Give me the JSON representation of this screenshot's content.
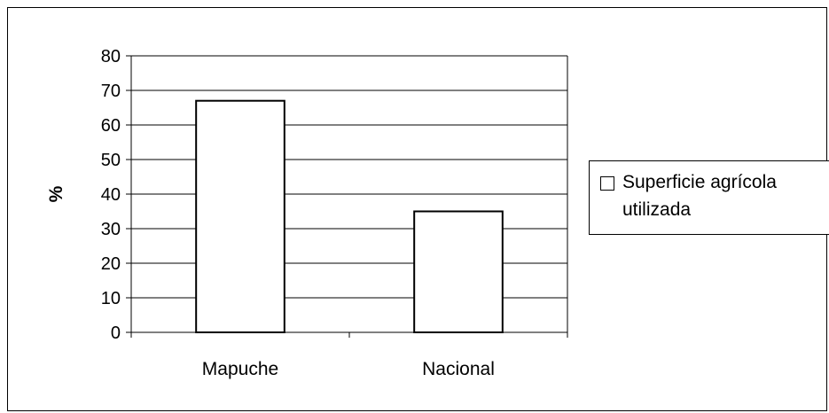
{
  "chart_data": {
    "type": "bar",
    "categories": [
      "Mapuche",
      "Nacional"
    ],
    "series": [
      {
        "name": "Superficie agrícola utilizada",
        "values": [
          67,
          35
        ],
        "color": "#ffffff"
      }
    ],
    "ylabel": "%",
    "xlabel": "",
    "ylim": [
      0,
      80
    ],
    "yticks": [
      "0",
      "10",
      "20",
      "30",
      "40",
      "50",
      "60",
      "70",
      "80"
    ],
    "grid": true,
    "legend_position": "right",
    "bar_stroke": "#000000",
    "grid_color": "#000000"
  },
  "legend": {
    "label": "Superficie agrícola utilizada"
  }
}
